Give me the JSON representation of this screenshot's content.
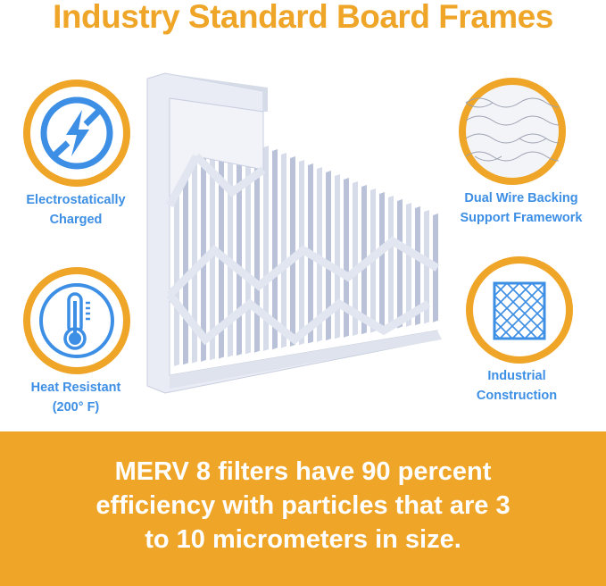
{
  "title": "Industry Standard Board Frames",
  "features": [
    {
      "label_line1": "Electrostatically",
      "label_line2": "Charged",
      "icon": "no-static-lightning-icon"
    },
    {
      "label_line1": "Heat Resistant",
      "label_line2": "(200° F)",
      "icon": "thermometer-icon"
    },
    {
      "label_line1": "Dual Wire Backing",
      "label_line2": "Support Framework",
      "icon": "wire-mesh-photo"
    },
    {
      "label_line1": "Industrial",
      "label_line2": "Construction",
      "icon": "grid-frame-icon"
    }
  ],
  "banner": {
    "line1": "MERV 8 filters have 90 percent",
    "line2": "efficiency with particles that are 3",
    "line3": "to 10 micrometers in size."
  },
  "colors": {
    "accent": "#EFA527",
    "icon_blue": "#3D8FE5"
  }
}
